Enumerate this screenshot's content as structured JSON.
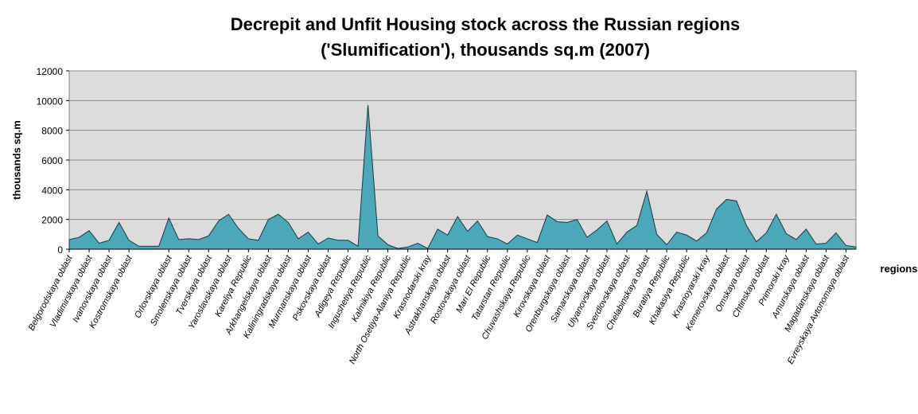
{
  "chart_data": {
    "type": "area",
    "title": [
      "Decrepit and Unfit Housing stock across the Russian regions",
      "('Slumification'), thousands sq.m (2007)"
    ],
    "x_label": "regions",
    "y_label": "thousands sq.m",
    "categories": [
      "Belgorodskaya oblast",
      null,
      "Vladimirskaya oblast",
      null,
      "Ivanovskaya oblast",
      null,
      "Kostromskaya oblast",
      null,
      null,
      null,
      "Orlovskaya oblast",
      null,
      "Smolenskaya oblast",
      null,
      "Tverskaya oblast",
      null,
      "Yaroslavskaya oblast",
      null,
      "Kareliya Republic",
      null,
      "Arkhangelskaya oblast",
      null,
      "Kaliningradskaya oblast",
      null,
      "Murmanskaya oblast",
      null,
      "Pskovskaya oblast",
      null,
      "Adigeya Republic",
      null,
      "Ingushetiya Republic",
      null,
      "Kalmikiya Republic",
      null,
      "North Osetiya-Alaniya Republic",
      null,
      "Krasnodarski kray",
      null,
      "Astrakhanskaya oblast",
      null,
      "Rostovskaya oblast",
      null,
      "Mari El Republic",
      null,
      "Tatarstan Republic",
      null,
      "Chuvashskaya Republic",
      null,
      "Kirovskaya oblast",
      null,
      "Orenburgskaya oblast",
      null,
      "Samarskaya oblast",
      null,
      "Ulyanovskaya oblast",
      null,
      "Sverdlovskaya oblast",
      null,
      "Chelabinskaya oblast",
      null,
      "Buratiya Republic",
      null,
      "Khakasiya Republic",
      null,
      "Krasnoyarski kray",
      null,
      "Kemerovskaya oblast",
      null,
      "Omskaya oblast",
      null,
      "Chtinskaya oblast",
      null,
      "Primorski kray",
      null,
      "Amurskaya oblast",
      null,
      "Magadanskaya oblast",
      null,
      "Evreyskaya Avtonomaya oblast",
      null
    ],
    "values": [
      650,
      800,
      1250,
      400,
      600,
      1800,
      600,
      200,
      200,
      200,
      2100,
      650,
      700,
      650,
      900,
      1900,
      2350,
      1400,
      700,
      600,
      2000,
      2350,
      1800,
      700,
      1150,
      350,
      750,
      600,
      600,
      200,
      9700,
      900,
      300,
      50,
      150,
      400,
      50,
      1350,
      950,
      2200,
      1200,
      1900,
      850,
      700,
      350,
      950,
      700,
      450,
      2300,
      1850,
      1800,
      2000,
      800,
      1300,
      1900,
      350,
      1150,
      1600,
      3900,
      1000,
      300,
      1150,
      950,
      550,
      1100,
      2700,
      3350,
      3250,
      1600,
      500,
      1100,
      2350,
      1050,
      650,
      1350,
      350,
      400,
      1100,
      250,
      150
    ],
    "color": "#4aa8b8",
    "ylim": [
      0,
      12000
    ],
    "yticks": [
      0,
      2000,
      4000,
      6000,
      8000,
      10000,
      12000
    ],
    "grid": true
  }
}
